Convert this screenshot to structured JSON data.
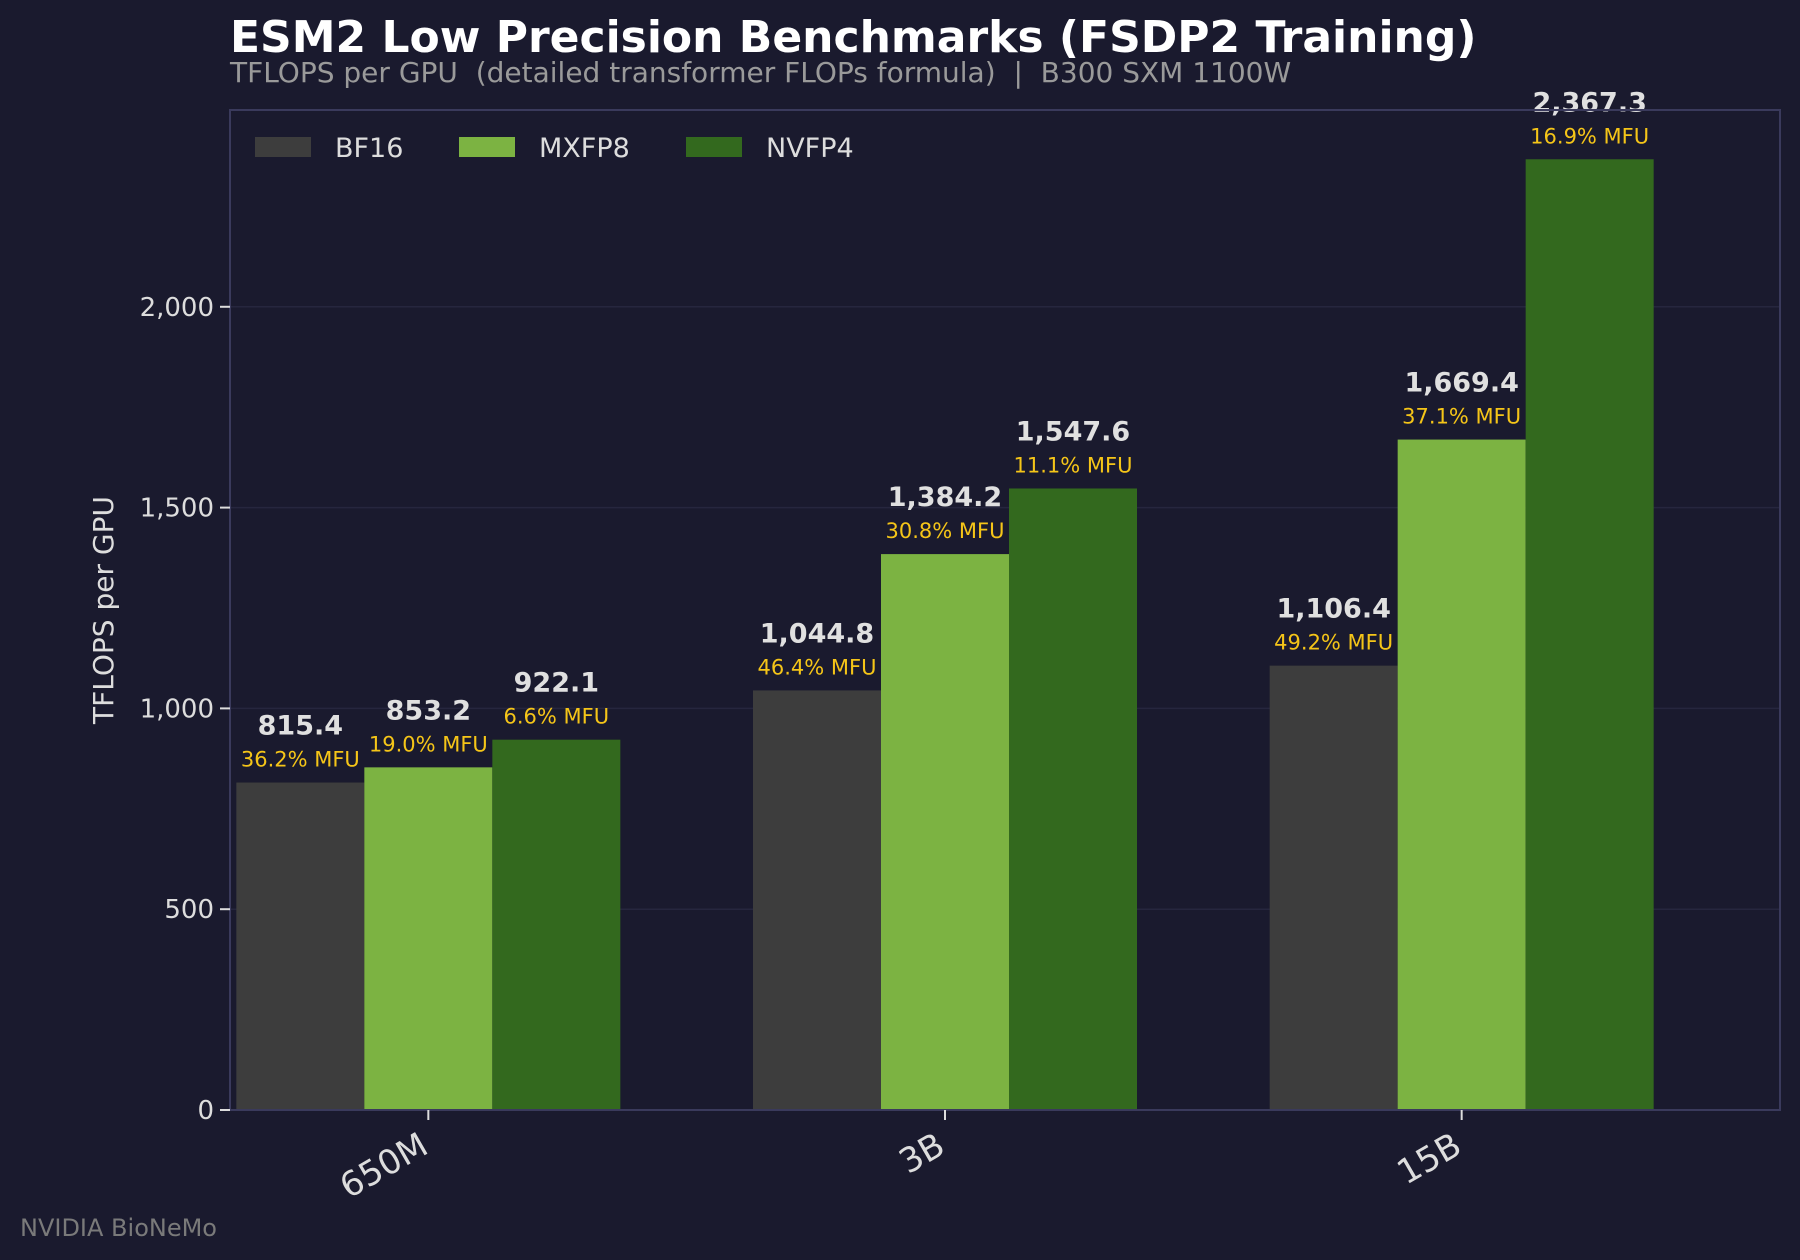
{
  "chart_data": {
    "type": "bar",
    "title": "ESM2 Low Precision Benchmarks (FSDP2 Training)",
    "subtitle": "TFLOPS per GPU  (detailed transformer FLOPs formula)  |  B300 SXM 1100W",
    "xlabel": "",
    "ylabel": "TFLOPS per GPU",
    "categories": [
      "650M",
      "3B",
      "15B"
    ],
    "ylim": [
      0,
      2490
    ],
    "yticks": [
      0,
      500,
      1000,
      1500,
      2000
    ],
    "ytick_labels": [
      "0",
      "500",
      "1,000",
      "1,500",
      "2,000"
    ],
    "grid": true,
    "legend_position": "top-left",
    "series": [
      {
        "name": "BF16",
        "color": "#3d3d3d",
        "values": [
          815.4,
          1044.8,
          1106.4
        ],
        "value_labels": [
          "815.4",
          "1,044.8",
          "1,106.4"
        ],
        "mfu_labels": [
          "36.2% MFU",
          "46.4% MFU",
          "49.2% MFU"
        ]
      },
      {
        "name": "MXFP8",
        "color": "#7cb342",
        "values": [
          853.2,
          1384.2,
          1669.4
        ],
        "value_labels": [
          "853.2",
          "1,384.2",
          "1,669.4"
        ],
        "mfu_labels": [
          "19.0% MFU",
          "30.8% MFU",
          "37.1% MFU"
        ]
      },
      {
        "name": "NVFP4",
        "color": "#33691e",
        "values": [
          922.1,
          1547.6,
          2367.3
        ],
        "value_labels": [
          "922.1",
          "1,547.6",
          "2,367.3"
        ],
        "mfu_labels": [
          "6.6% MFU",
          "11.1% MFU",
          "16.9% MFU"
        ]
      }
    ],
    "colors": {
      "background": "#1a1a2e",
      "frame": "#3a3a5c",
      "grid": "#26263e",
      "title": "#ffffff",
      "subtitle": "#9a9a9a",
      "axis_text": "#dddddd",
      "value_label": "#e0e0e0",
      "mfu_label": "#f5c518",
      "watermark": "#7a7a7a"
    }
  },
  "watermark": "NVIDIA BioNeMo"
}
